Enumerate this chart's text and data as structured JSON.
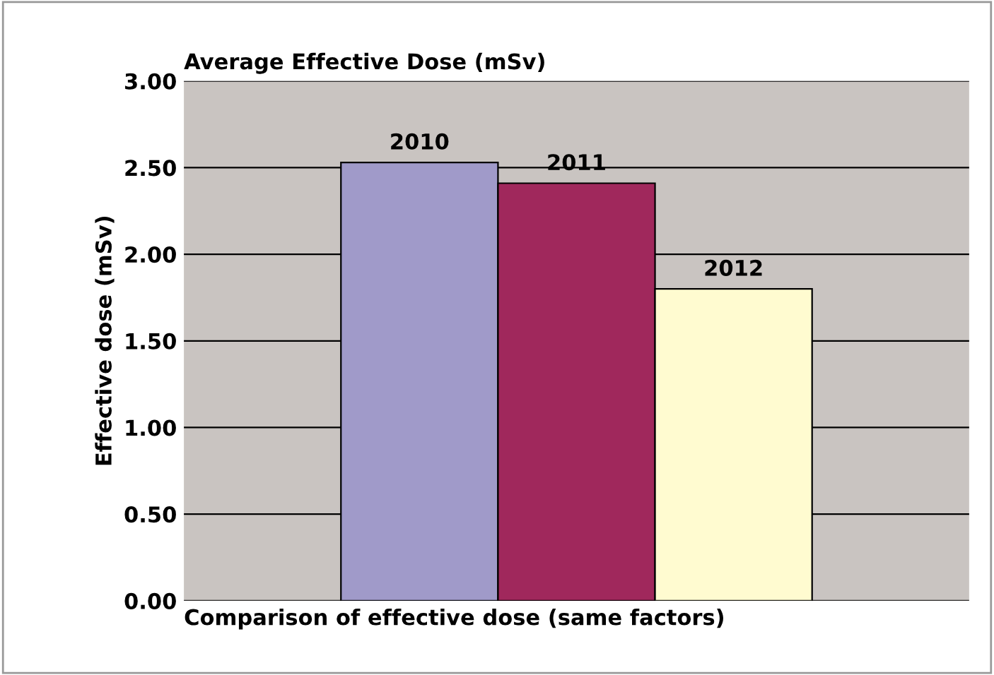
{
  "chart_data": {
    "type": "bar",
    "title": "Average Effective Dose (mSv)",
    "xlabel": "Comparison of effective dose (same factors)",
    "ylabel": "Effective dose (mSv)",
    "categories": [
      "2010",
      "2011",
      "2012"
    ],
    "values": [
      2.53,
      2.41,
      1.8
    ],
    "colors": [
      "#a09ac9",
      "#a0285c",
      "#fffbd0"
    ],
    "ylim": [
      0,
      3
    ],
    "yticks": [
      {
        "value": 0,
        "label": "0.00"
      },
      {
        "value": 0.5,
        "label": "0.50"
      },
      {
        "value": 1,
        "label": "1.00"
      },
      {
        "value": 1.5,
        "label": "1.50"
      },
      {
        "value": 2,
        "label": "2.00"
      },
      {
        "value": 2.5,
        "label": "2.50"
      },
      {
        "value": 3,
        "label": "3.00"
      }
    ],
    "grid": "y",
    "legend": false
  }
}
